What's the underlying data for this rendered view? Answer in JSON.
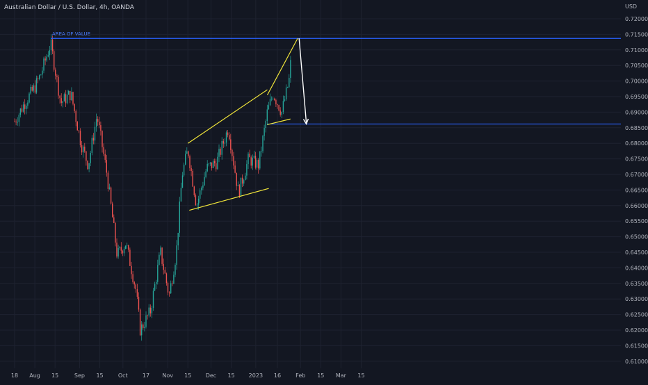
{
  "header": {
    "title": "Australian Dollar / U.S. Dollar, 4h, OANDA",
    "currency": "USD"
  },
  "colors": {
    "background": "#131722",
    "grid": "#1e2230",
    "axis_text": "#b2b5be",
    "candle_up": "#26a69a",
    "candle_down": "#ef5350",
    "trendline": "#f2e63a",
    "level_line": "#2962ff",
    "arrow": "#ffffff"
  },
  "chart_data": {
    "type": "candlestick",
    "symbol": "AUDUSD",
    "timeframe": "4h",
    "ylim": [
      0.6075,
      0.7225
    ],
    "y_ticks": [
      0.72,
      0.715,
      0.71,
      0.705,
      0.7,
      0.695,
      0.69,
      0.685,
      0.68,
      0.675,
      0.67,
      0.665,
      0.66,
      0.655,
      0.65,
      0.645,
      0.64,
      0.635,
      0.63,
      0.625,
      0.62,
      0.615,
      0.61
    ],
    "x_ticks": [
      "18",
      "Aug",
      "15",
      "Sep",
      "15",
      "Oct",
      "17",
      "Nov",
      "15",
      "Dec",
      "15",
      "2023",
      "16",
      "Feb",
      "15",
      "Mar",
      "15"
    ],
    "price_path": [
      {
        "date": "2022-07-18",
        "price": 0.687
      },
      {
        "date": "2022-07-25",
        "price": 0.693
      },
      {
        "date": "2022-08-01",
        "price": 0.698
      },
      {
        "date": "2022-08-05",
        "price": 0.702
      },
      {
        "date": "2022-08-12",
        "price": 0.712
      },
      {
        "date": "2022-08-19",
        "price": 0.693
      },
      {
        "date": "2022-08-26",
        "price": 0.696
      },
      {
        "date": "2022-09-02",
        "price": 0.68
      },
      {
        "date": "2022-09-07",
        "price": 0.673
      },
      {
        "date": "2022-09-13",
        "price": 0.689
      },
      {
        "date": "2022-09-20",
        "price": 0.67
      },
      {
        "date": "2022-09-27",
        "price": 0.644
      },
      {
        "date": "2022-10-03",
        "price": 0.648
      },
      {
        "date": "2022-10-10",
        "price": 0.633
      },
      {
        "date": "2022-10-13",
        "price": 0.62
      },
      {
        "date": "2022-10-20",
        "price": 0.626
      },
      {
        "date": "2022-10-27",
        "price": 0.645
      },
      {
        "date": "2022-11-02",
        "price": 0.631
      },
      {
        "date": "2022-11-07",
        "price": 0.645
      },
      {
        "date": "2022-11-11",
        "price": 0.67
      },
      {
        "date": "2022-11-15",
        "price": 0.678
      },
      {
        "date": "2022-11-21",
        "price": 0.66
      },
      {
        "date": "2022-11-28",
        "price": 0.672
      },
      {
        "date": "2022-12-05",
        "price": 0.674
      },
      {
        "date": "2022-12-13",
        "price": 0.685
      },
      {
        "date": "2022-12-20",
        "price": 0.664
      },
      {
        "date": "2022-12-27",
        "price": 0.675
      },
      {
        "date": "2023-01-03",
        "price": 0.673
      },
      {
        "date": "2023-01-09",
        "price": 0.69
      },
      {
        "date": "2023-01-13",
        "price": 0.696
      },
      {
        "date": "2023-01-19",
        "price": 0.69
      },
      {
        "date": "2023-01-24",
        "price": 0.7
      },
      {
        "date": "2023-01-26",
        "price": 0.71
      }
    ],
    "drawings": {
      "area_of_value": {
        "label": "AREA OF VALUE",
        "price": 0.7137,
        "from": "2022-08-12",
        "to": "2023-03-15"
      },
      "support_level": {
        "price": 0.6862,
        "from": "2023-01-09",
        "to": "2023-03-15"
      },
      "channel_upper": {
        "from": {
          "date": "2022-11-15",
          "price": 0.68
        },
        "to": {
          "date": "2023-01-09",
          "price": 0.6972
        }
      },
      "channel_lower": {
        "from": {
          "date": "2022-11-16",
          "price": 0.6585
        },
        "to": {
          "date": "2023-01-10",
          "price": 0.6655
        }
      },
      "wedge_upper": {
        "from": {
          "date": "2023-01-09",
          "price": 0.6955
        },
        "to": {
          "date": "2023-01-30",
          "price": 0.7137
        }
      },
      "wedge_lower": {
        "from": {
          "date": "2023-01-09",
          "price": 0.686
        },
        "to": {
          "date": "2023-01-25",
          "price": 0.6878
        }
      },
      "forecast_arrow": {
        "from": {
          "date": "2023-01-31",
          "price": 0.7137
        },
        "to": {
          "date": "2023-02-05",
          "price": 0.6862
        }
      }
    }
  }
}
